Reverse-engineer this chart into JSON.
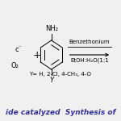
{
  "catalyst_text": "Benzethonium",
  "solvent_text": "EtOH:H₂O(1:1",
  "y_label": "Y= H, 2-Cl, 4-CH₃, 4-O",
  "bottom_text": "ide catalyzed  Synthesis of",
  "nh2_label": "NH₂",
  "y_marker": "Y",
  "plus_sign": "+",
  "c_label": "c",
  "c_charge": "⁻",
  "o2_label": "O₂",
  "background": "#f0f0f0",
  "text_color": "#000000",
  "line_color": "#000000"
}
